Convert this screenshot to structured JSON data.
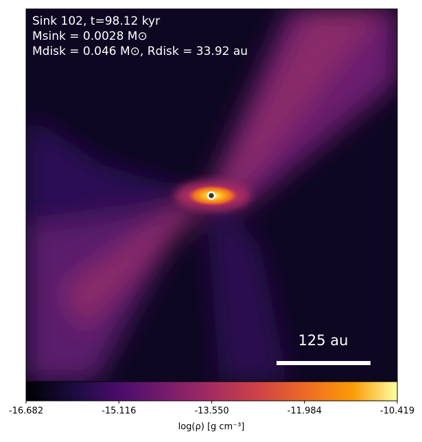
{
  "chart_data": {
    "type": "density-map",
    "annotations": [
      "Sink 102, t=98.12 kyr",
      "Msink = 0.0028 M⊙",
      "Mdisk = 0.046 M⊙, Rdisk = 33.92 au"
    ],
    "scale_bar_label": "125 au",
    "colorbar_label": "log(ρ) [g cm⁻³]",
    "clim": [
      -16.682,
      -10.419
    ],
    "cticks": [
      -16.682,
      -15.116,
      {
        "value": -13.55,
        "label": "-13.550"
      },
      -11.984,
      -10.419
    ]
  }
}
